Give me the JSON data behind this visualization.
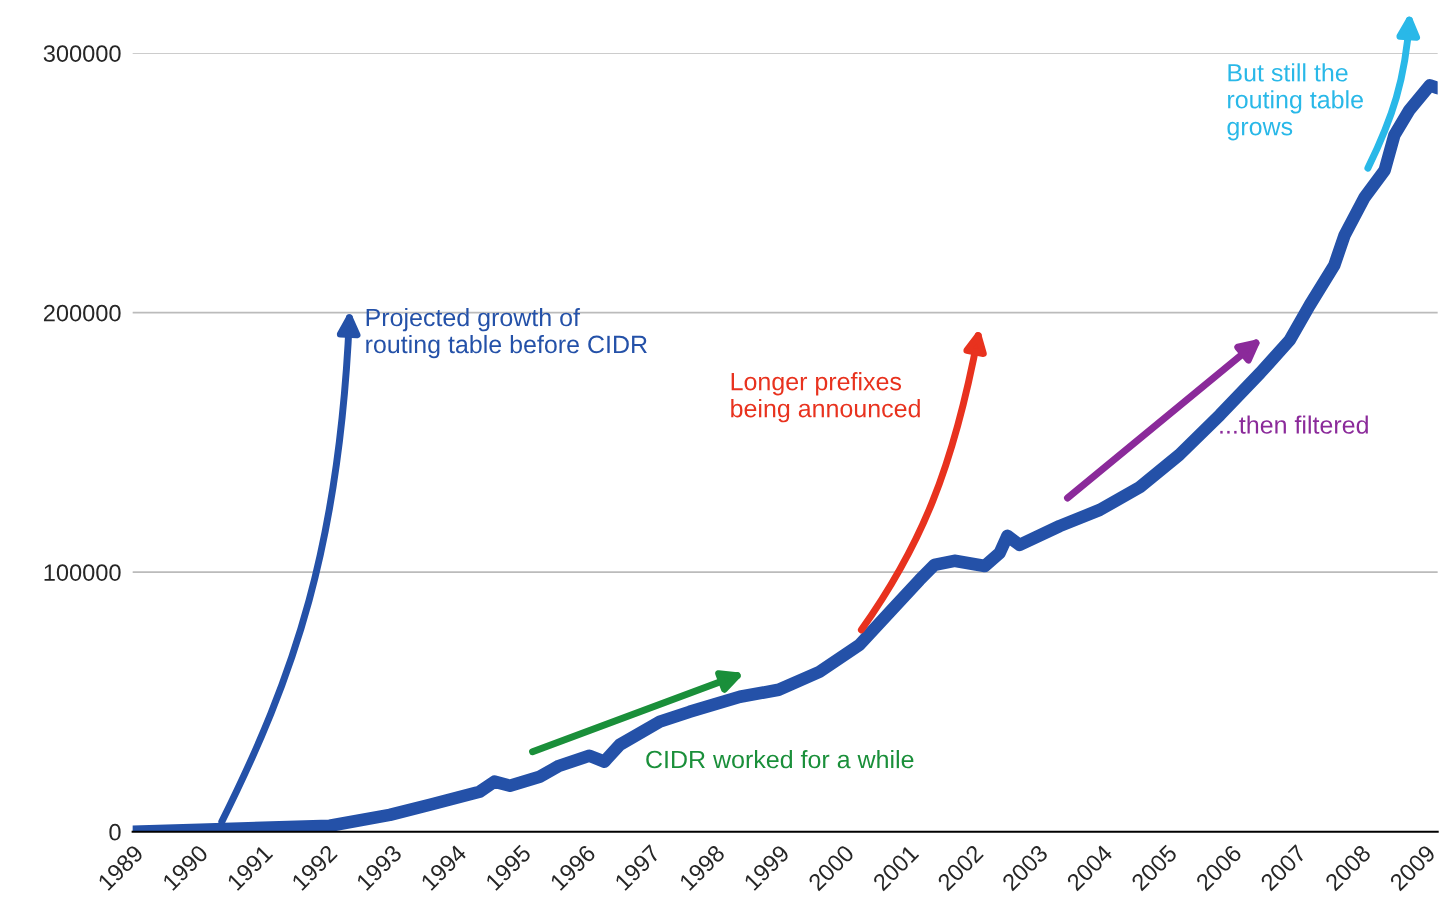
{
  "chart_data": {
    "type": "line",
    "xlim": [
      1989,
      2009.2
    ],
    "ylim": [
      0,
      300000
    ],
    "xticks": [
      1989,
      1990,
      1991,
      1992,
      1993,
      1994,
      1995,
      1996,
      1997,
      1998,
      1999,
      2000,
      2001,
      2002,
      2003,
      2004,
      2005,
      2006,
      2007,
      2008,
      2009
    ],
    "yticks": [
      0,
      100000,
      200000,
      300000
    ],
    "grid": "y",
    "legend": false,
    "marker": "none",
    "line_style": "solid",
    "series": [
      {
        "color": "#2451a8",
        "x": [
          1989.0,
          1990.04,
          1992.05,
          1992.98,
          1993.6,
          1994.37,
          1994.6,
          1994.84,
          1995.3,
          1995.6,
          1996.07,
          1996.3,
          1996.54,
          1997.16,
          1997.62,
          1998.4,
          1999.0,
          1999.63,
          2000.25,
          2000.72,
          2001.18,
          2001.41,
          2001.72,
          2002.19,
          2002.42,
          2002.54,
          2002.73,
          2003.35,
          2003.97,
          2004.59,
          2005.2,
          2005.83,
          2006.45,
          2006.91,
          2007.22,
          2007.6,
          2007.76,
          2008.07,
          2008.38,
          2008.53,
          2008.76,
          2009.08,
          2009.2
        ],
        "values": [
          0,
          800,
          2300,
          6500,
          10400,
          15400,
          19300,
          17700,
          21200,
          25400,
          29300,
          27000,
          33500,
          42400,
          46200,
          52000,
          54700,
          61600,
          72000,
          84700,
          97000,
          102800,
          104400,
          102400,
          107400,
          114000,
          110500,
          117800,
          124000,
          132800,
          145200,
          160600,
          176700,
          189400,
          202900,
          218300,
          229900,
          244500,
          254900,
          268400,
          278000,
          287600,
          286500
        ]
      }
    ],
    "annotations": [
      "Projected growth of\nrouting table before CIDR",
      "CIDR worked for a while",
      "Longer prefixes\nbeing announced",
      "...then filtered",
      "But still the\nrouting table\ngrows"
    ]
  }
}
